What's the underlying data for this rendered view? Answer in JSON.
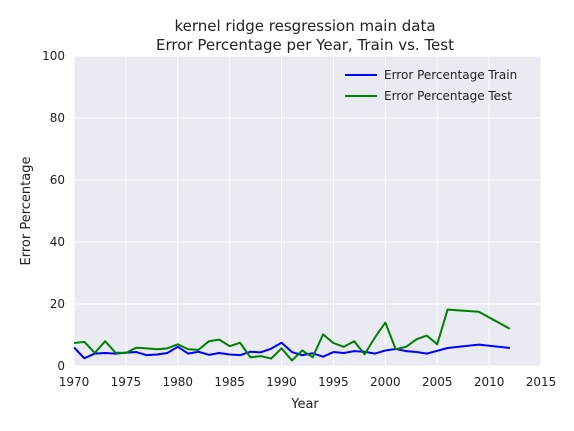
{
  "chart_data": {
    "type": "line",
    "title": "kernel ridge resgression main data",
    "subtitle": "Error Percentage per Year, Train vs. Test",
    "xlabel": "Year",
    "ylabel": "Error Percentage",
    "xlim": [
      1970,
      2015
    ],
    "ylim": [
      0,
      100
    ],
    "xticks": [
      1970,
      1975,
      1980,
      1985,
      1990,
      1995,
      2000,
      2005,
      2010,
      2015
    ],
    "yticks": [
      0,
      20,
      40,
      60,
      80,
      100
    ],
    "grid": true,
    "legend_position": "top-right",
    "background": "#eaeaf2",
    "series": [
      {
        "name": "Error Percentage Train",
        "color": "#0000ff",
        "x": [
          1970,
          1971,
          1972,
          1973,
          1974,
          1975,
          1976,
          1977,
          1978,
          1979,
          1980,
          1981,
          1982,
          1983,
          1984,
          1985,
          1986,
          1987,
          1988,
          1989,
          1990,
          1991,
          1992,
          1993,
          1994,
          1995,
          1996,
          1997,
          1998,
          1999,
          2000,
          2001,
          2002,
          2003,
          2004,
          2005,
          2006,
          2009,
          2012
        ],
        "y": [
          6.0,
          2.5,
          4.0,
          4.2,
          4.0,
          4.3,
          4.5,
          3.5,
          3.7,
          4.2,
          6.2,
          4.0,
          4.6,
          3.6,
          4.2,
          3.7,
          3.5,
          4.6,
          4.4,
          5.6,
          7.5,
          4.5,
          3.5,
          4.1,
          3.0,
          4.5,
          4.2,
          4.8,
          4.6,
          4.0,
          5.0,
          5.5,
          4.8,
          4.5,
          4.0,
          4.9,
          5.8,
          6.9,
          5.8
        ]
      },
      {
        "name": "Error Percentage Test",
        "color": "#008000",
        "x": [
          1970,
          1971,
          1972,
          1973,
          1974,
          1975,
          1976,
          1977,
          1978,
          1979,
          1980,
          1981,
          1982,
          1983,
          1984,
          1985,
          1986,
          1987,
          1988,
          1989,
          1990,
          1991,
          1992,
          1993,
          1994,
          1995,
          1996,
          1997,
          1998,
          1999,
          2000,
          2001,
          2002,
          2003,
          2004,
          2005,
          2006,
          2009,
          2012
        ],
        "y": [
          7.4,
          7.8,
          4.2,
          8.0,
          4.3,
          4.2,
          5.9,
          5.7,
          5.4,
          5.7,
          7.0,
          5.4,
          5.2,
          8.0,
          8.5,
          6.4,
          7.5,
          2.8,
          3.2,
          2.4,
          5.7,
          1.8,
          5.0,
          2.8,
          10.2,
          7.4,
          6.2,
          8.0,
          3.8,
          9.2,
          14.0,
          5.4,
          6.2,
          8.6,
          9.8,
          7.0,
          18.2,
          17.5,
          12.0
        ]
      }
    ]
  }
}
